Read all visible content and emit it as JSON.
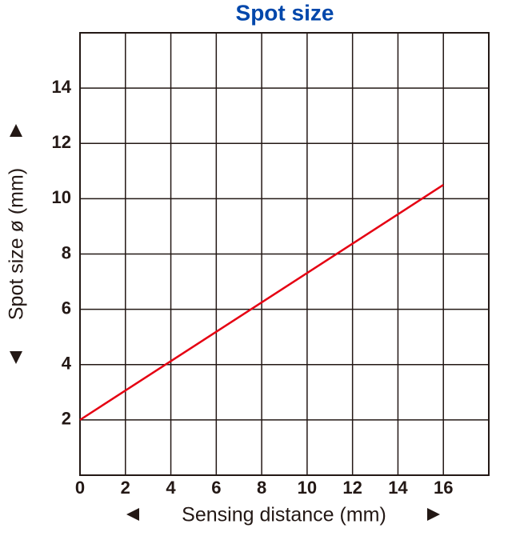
{
  "chart_data": {
    "type": "line",
    "title": "Spot size",
    "x_label": "Sensing distance (mm)",
    "y_label": "Spot size ø (mm)",
    "x": [
      0,
      16
    ],
    "series": [
      {
        "name": "Spot size",
        "color": "#e50012",
        "values": [
          2,
          10.5
        ]
      }
    ],
    "xlim": [
      0,
      18
    ],
    "ylim": [
      0,
      16
    ],
    "xticks": [
      0,
      2,
      4,
      6,
      8,
      10,
      12,
      14,
      16
    ],
    "yticks": [
      2,
      4,
      6,
      8,
      10,
      12,
      14
    ],
    "grid": true,
    "title_color": "#0047ab"
  }
}
